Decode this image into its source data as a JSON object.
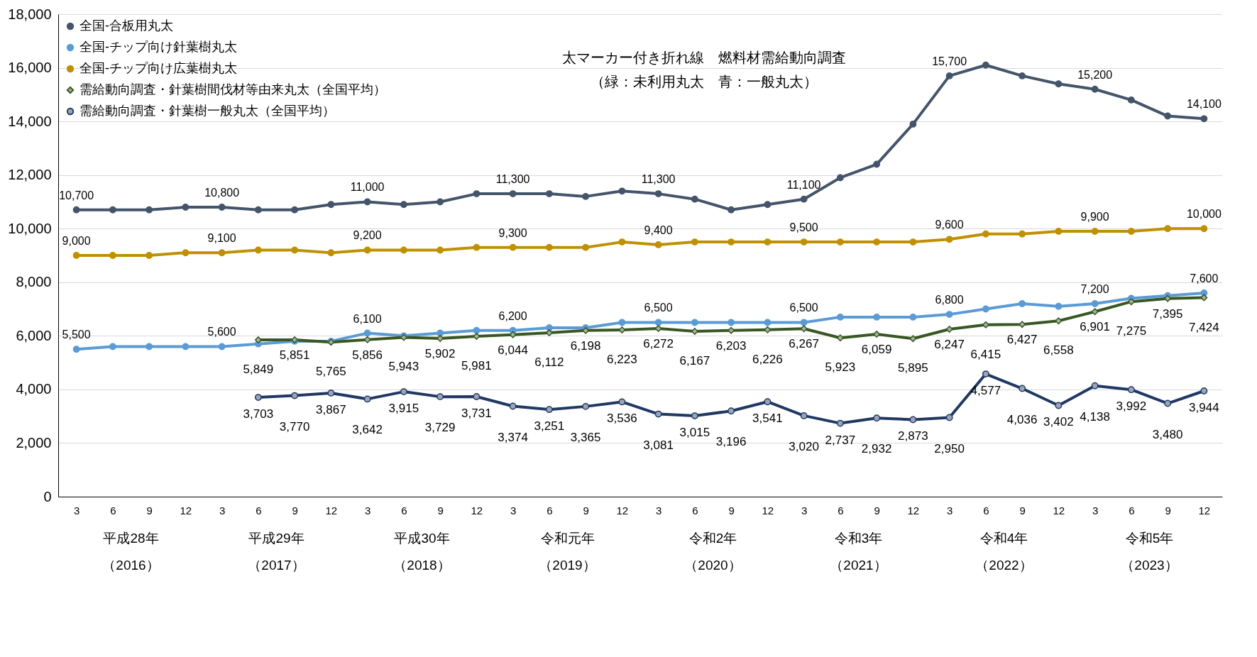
{
  "chart_data": {
    "type": "line",
    "categories": [
      "3",
      "6",
      "9",
      "12",
      "3",
      "6",
      "9",
      "12",
      "3",
      "6",
      "9",
      "12",
      "3",
      "6",
      "9",
      "12",
      "3",
      "6",
      "9",
      "12",
      "3",
      "6",
      "9",
      "12",
      "3",
      "6",
      "9",
      "12",
      "3",
      "6",
      "9",
      "12"
    ],
    "series": [
      {
        "name": "全国-合板用丸太",
        "color": "#44546a",
        "marker": "circle",
        "values": [
          10700,
          10700,
          10700,
          10800,
          10800,
          10700,
          10700,
          10900,
          11000,
          10900,
          11000,
          11300,
          11300,
          11300,
          11200,
          11400,
          11300,
          11100,
          10700,
          10900,
          11100,
          11900,
          12400,
          13900,
          15700,
          16100,
          15700,
          15400,
          15200,
          14800,
          14200,
          14100
        ],
        "value_labels": [
          "10,700",
          null,
          null,
          null,
          "10,800",
          null,
          null,
          null,
          "11,000",
          null,
          null,
          null,
          "11,300",
          null,
          null,
          null,
          "11,300",
          null,
          null,
          null,
          "11,100",
          null,
          null,
          null,
          "15,700",
          null,
          null,
          null,
          "15,200",
          null,
          null,
          "14,100"
        ]
      },
      {
        "name": "全国-チップ向け針葉樹丸太",
        "color": "#5b9bd5",
        "marker": "circle",
        "values": [
          5500,
          5600,
          5600,
          5600,
          5600,
          5700,
          5800,
          5800,
          6100,
          6000,
          6100,
          6200,
          6200,
          6300,
          6300,
          6500,
          6500,
          6500,
          6500,
          6500,
          6500,
          6700,
          6700,
          6700,
          6800,
          7000,
          7200,
          7100,
          7200,
          7400,
          7500,
          7600
        ],
        "value_labels": [
          "5,500",
          null,
          null,
          null,
          "5,600",
          null,
          null,
          null,
          "6,100",
          null,
          null,
          null,
          "6,200",
          null,
          null,
          null,
          "6,500",
          null,
          null,
          null,
          "6,500",
          null,
          null,
          null,
          "6,800",
          null,
          null,
          null,
          "7,200",
          null,
          null,
          "7,600"
        ]
      },
      {
        "name": "全国-チップ向け広葉樹丸太",
        "color": "#bf9000",
        "marker": "circle",
        "values": [
          9000,
          9000,
          9000,
          9100,
          9100,
          9200,
          9200,
          9100,
          9200,
          9200,
          9200,
          9300,
          9300,
          9300,
          9300,
          9500,
          9400,
          9500,
          9500,
          9500,
          9500,
          9500,
          9500,
          9500,
          9600,
          9800,
          9800,
          9900,
          9900,
          9900,
          10000,
          10000
        ],
        "value_labels": [
          "9,000",
          null,
          null,
          null,
          "9,100",
          null,
          null,
          null,
          "9,200",
          null,
          null,
          null,
          "9,300",
          null,
          null,
          null,
          "9,400",
          null,
          null,
          null,
          "9,500",
          null,
          null,
          null,
          "9,600",
          null,
          null,
          null,
          "9,900",
          null,
          null,
          "10,000"
        ]
      },
      {
        "name": "需給動向調査・針葉樹間伐材等由来丸太（全国平均）",
        "color": "#385723",
        "marker": "diamond",
        "values": [
          null,
          null,
          null,
          null,
          null,
          5849,
          5851,
          5765,
          5856,
          5943,
          5902,
          5981,
          6044,
          6112,
          6198,
          6223,
          6272,
          6167,
          6203,
          6226,
          6267,
          5923,
          6059,
          5895,
          6247,
          6415,
          6427,
          6558,
          6901,
          7275,
          7395,
          7424
        ],
        "value_labels": [
          null,
          null,
          null,
          null,
          null,
          "5,849",
          "5,851",
          "5,765",
          "5,856",
          "5,943",
          "5,902",
          "5,981",
          "6,044",
          "6,112",
          "6,198",
          "6,223",
          "6,272",
          "6,167",
          "6,203",
          "6,226",
          "6,267",
          "5,923",
          "6,059",
          "5,895",
          "6,247",
          "6,415",
          "6,427",
          "6,558",
          "6,901",
          "7,275",
          "7,395",
          "7,424"
        ]
      },
      {
        "name": "需給動向調査・針葉樹一般丸太（全国平均）",
        "color": "#203864",
        "marker": "circle",
        "values": [
          null,
          null,
          null,
          null,
          null,
          3703,
          3770,
          3867,
          3642,
          3915,
          3729,
          3731,
          3374,
          3251,
          3365,
          3536,
          3081,
          3015,
          3196,
          3541,
          3020,
          2737,
          2932,
          2873,
          2950,
          4577,
          4036,
          3402,
          4138,
          3992,
          3480,
          3944
        ],
        "value_labels": [
          null,
          null,
          null,
          null,
          null,
          "3,703",
          "3,770",
          "3,867",
          "3,642",
          "3,915",
          "3,729",
          "3,731",
          "3,374",
          "3,251",
          "3,365",
          "3,536",
          "3,081",
          "3,015",
          "3,196",
          "3,541",
          "3,020",
          "2,737",
          "2,932",
          "2,873",
          "2,950",
          "4,577",
          "4,036",
          "3,402",
          "4,138",
          "3,992",
          "3,480",
          "3,944"
        ]
      }
    ],
    "ylim": [
      0,
      18000
    ],
    "yticks": [
      0,
      {
        "value": 2000,
        "label": "2,000"
      },
      {
        "value": 4000,
        "label": "4,000"
      },
      {
        "value": 6000,
        "label": "6,000"
      },
      {
        "value": 8000,
        "label": "8,000"
      },
      {
        "value": 10000,
        "label": "10,000"
      },
      {
        "value": 12000,
        "label": "12,000"
      },
      {
        "value": 14000,
        "label": "14,000"
      },
      {
        "value": 16000,
        "label": "16,000"
      },
      {
        "value": 18000,
        "label": "18,000"
      }
    ],
    "grid": "y",
    "legend": "top left",
    "annotations": [
      "太マーカー付き折れ線　燃料材需給動向調査",
      "（緑：未利用丸太　青：一般丸太）",
      "平成28年（2016）",
      "平成29年（2017）",
      "平成30年（2018）",
      "令和元年（2019）",
      "令和2年（2020）",
      "令和3年（2021）",
      "令和4年（2022）",
      "令和5年（2023）"
    ]
  }
}
